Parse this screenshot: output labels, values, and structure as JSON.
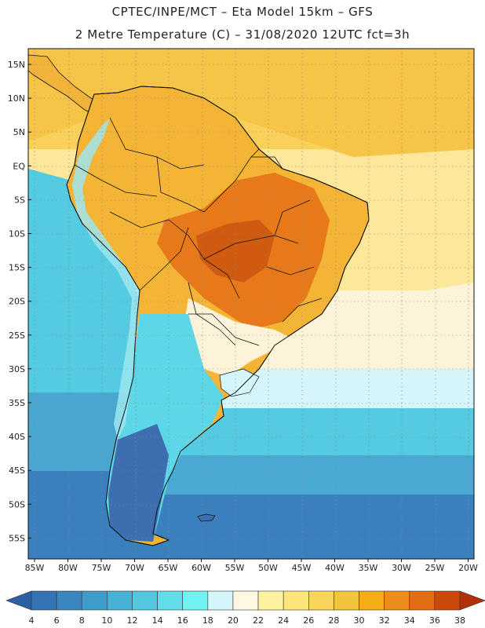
{
  "header": {
    "line1": "CPTEC/INPE/MCT –  Eta Model 15km – GFS",
    "line2": "2 Metre Temperature (C) – 31/08/2020 12UTC fct=3h"
  },
  "map": {
    "lat_labels": [
      "15N",
      "10N",
      "5N",
      "EQ",
      "5S",
      "10S",
      "15S",
      "20S",
      "25S",
      "30S",
      "35S",
      "40S",
      "45S",
      "50S",
      "55S"
    ],
    "lon_labels": [
      "85W",
      "80W",
      "75W",
      "70W",
      "65W",
      "60W",
      "55W",
      "50W",
      "45W",
      "40W",
      "35W",
      "30W",
      "25W",
      "20W"
    ]
  },
  "legend": {
    "ticks": [
      "4",
      "6",
      "8",
      "10",
      "12",
      "14",
      "16",
      "18",
      "20",
      "22",
      "24",
      "26",
      "28",
      "30",
      "32",
      "34",
      "36",
      "38"
    ],
    "colors": [
      "#2c5fa3",
      "#3473b4",
      "#3a87bf",
      "#3f9dcb",
      "#48b2d6",
      "#53c7e0",
      "#60dde9",
      "#72f1f3",
      "#d4f6fb",
      "#fff8e0",
      "#fff3a0",
      "#fde57a",
      "#f8d45a",
      "#f2c33d",
      "#f4ad15",
      "#ec8c1c",
      "#e36d12",
      "#cb4a0b",
      "#b03008"
    ]
  },
  "colors": {
    "ocean_tropical": "#f9d25c",
    "ocean_warm": "#fde79a",
    "ocean_mid": "#54cbe1",
    "ocean_south": "#3a7fbe",
    "land_hot": "#e8791a",
    "land_warm": "#f4b436",
    "land_cool": "#5dd6e8",
    "land_cold": "#3d6fb0"
  }
}
